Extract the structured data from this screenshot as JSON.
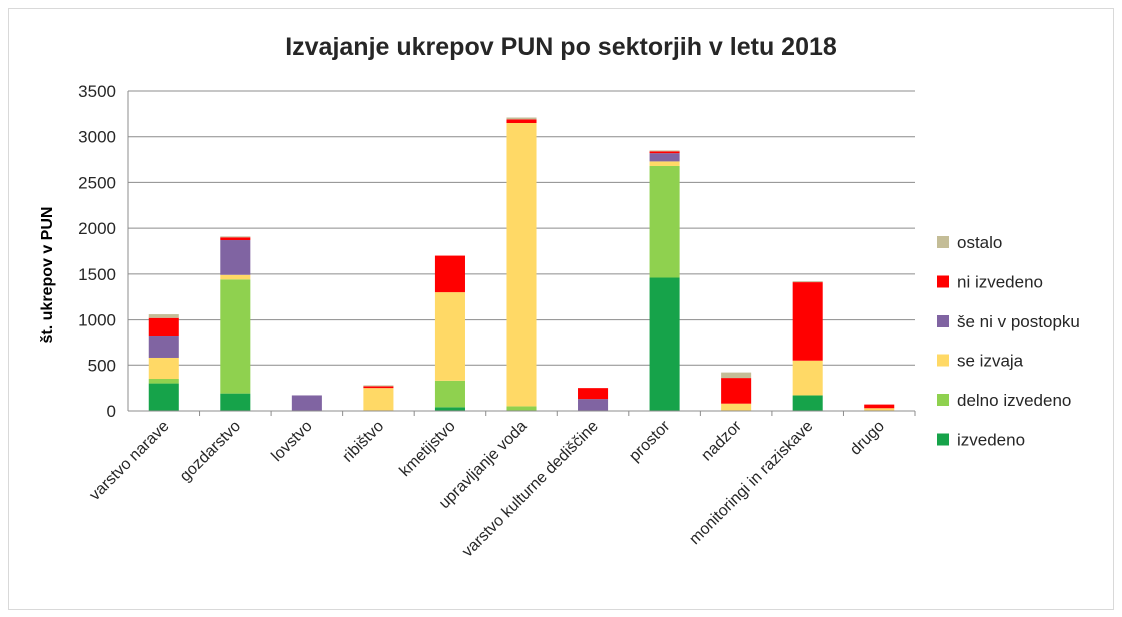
{
  "chart_data": {
    "type": "bar",
    "stacked": true,
    "title": "Izvajanje ukrepov PUN po sektorjih v letu 2018",
    "xlabel": "",
    "ylabel": "št. ukrepov v PUN",
    "ylim": [
      0,
      3500
    ],
    "yticks": [
      0,
      500,
      1000,
      1500,
      2000,
      2500,
      3000,
      3500
    ],
    "grid": true,
    "legend_position": "right",
    "categories": [
      "varstvo narave",
      "gozdarstvo",
      "lovstvo",
      "ribištvo",
      "kmetijstvo",
      "upravljanje voda",
      "varstvo kulturne dediščine",
      "prostor",
      "nadzor",
      "monitoringi in raziskave",
      "drugo"
    ],
    "series": [
      {
        "name": "izvedeno",
        "color": "#16a34a",
        "values": [
          300,
          190,
          0,
          0,
          40,
          0,
          0,
          1460,
          0,
          170,
          0
        ]
      },
      {
        "name": "delno izvedeno",
        "color": "#8fd14f",
        "values": [
          50,
          1250,
          0,
          0,
          290,
          50,
          0,
          1220,
          0,
          0,
          0
        ]
      },
      {
        "name": "se izvaja",
        "color": "#ffd966",
        "values": [
          230,
          50,
          0,
          250,
          970,
          3100,
          0,
          50,
          80,
          380,
          30
        ]
      },
      {
        "name": "še ni v postopku",
        "color": "#8064a2",
        "values": [
          240,
          380,
          170,
          0,
          0,
          0,
          130,
          90,
          0,
          0,
          0
        ]
      },
      {
        "name": "ni izvedeno",
        "color": "#ff0000",
        "values": [
          200,
          30,
          0,
          20,
          400,
          40,
          120,
          20,
          280,
          860,
          40
        ]
      },
      {
        "name": "ostalo",
        "color": "#c4bd97",
        "values": [
          40,
          10,
          0,
          10,
          0,
          20,
          0,
          10,
          60,
          10,
          0
        ]
      }
    ]
  }
}
